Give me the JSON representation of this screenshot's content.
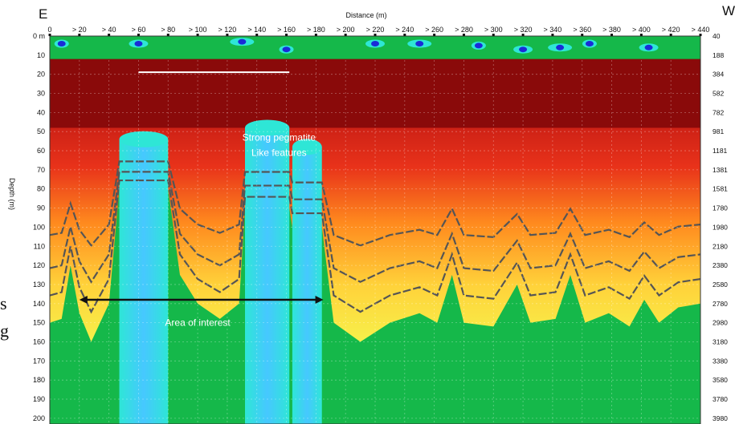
{
  "chart_data": {
    "type": "heatmap",
    "left_end_label": "E",
    "right_end_label": "W",
    "xlabel": "Distance (m)",
    "ylabel": "Depth (m)",
    "x_ticks": [
      "0",
      "> 20",
      "> 40",
      "> 60",
      "> 80",
      "> 100",
      "> 120",
      "> 140",
      "> 160",
      "> 180",
      "> 200",
      "> 220",
      "> 240",
      "> 260",
      "> 280",
      "> 300",
      "> 320",
      "> 340",
      "> 360",
      "> 380",
      "> 400",
      "> 420",
      "> 440"
    ],
    "x_values": [
      0,
      20,
      40,
      60,
      80,
      100,
      120,
      140,
      160,
      180,
      200,
      220,
      240,
      260,
      280,
      300,
      320,
      340,
      360,
      380,
      400,
      420,
      440
    ],
    "xlim": [
      0,
      440
    ],
    "y_ticks": [
      "0 m",
      "10",
      "20",
      "30",
      "40",
      "50",
      "60",
      "70",
      "80",
      "90",
      "100",
      "110",
      "120",
      "130",
      "140",
      "150",
      "160",
      "170",
      "180",
      "190",
      "200"
    ],
    "y_values": [
      0,
      10,
      20,
      30,
      40,
      50,
      60,
      70,
      80,
      90,
      100,
      110,
      120,
      130,
      140,
      150,
      160,
      170,
      180,
      190,
      200
    ],
    "ylim": [
      0,
      203
    ],
    "right_ticks": [
      "40",
      "188",
      "384",
      "582",
      "782",
      "981",
      "1181",
      "1381",
      "1581",
      "1780",
      "1980",
      "2180",
      "2380",
      "2580",
      "2780",
      "2980",
      "3180",
      "3380",
      "3580",
      "3780",
      "3980"
    ],
    "colorscale": [
      "#15b84a",
      "#2ee6d6",
      "#ffe83a",
      "#ff8a1e",
      "#e8321a",
      "#8a0a0a"
    ],
    "low_feature_zones": [
      {
        "x_start": 47,
        "x_end": 80,
        "top_depth": 54
      },
      {
        "x_start": 132,
        "x_end": 162,
        "top_depth": 48
      },
      {
        "x_start": 164,
        "x_end": 184,
        "top_depth": 58
      }
    ],
    "annotations": [
      {
        "text": "Strong pegmatite",
        "x": 155,
        "depth": 53
      },
      {
        "text": "Like features",
        "x": 155,
        "depth": 61
      },
      {
        "text": "Area of interest",
        "x": 100,
        "depth": 150
      }
    ],
    "area_of_interest_arrow": {
      "x_start": 20,
      "x_end": 185,
      "depth": 138
    },
    "left_edge_glyphs": [
      "s",
      "g"
    ]
  }
}
